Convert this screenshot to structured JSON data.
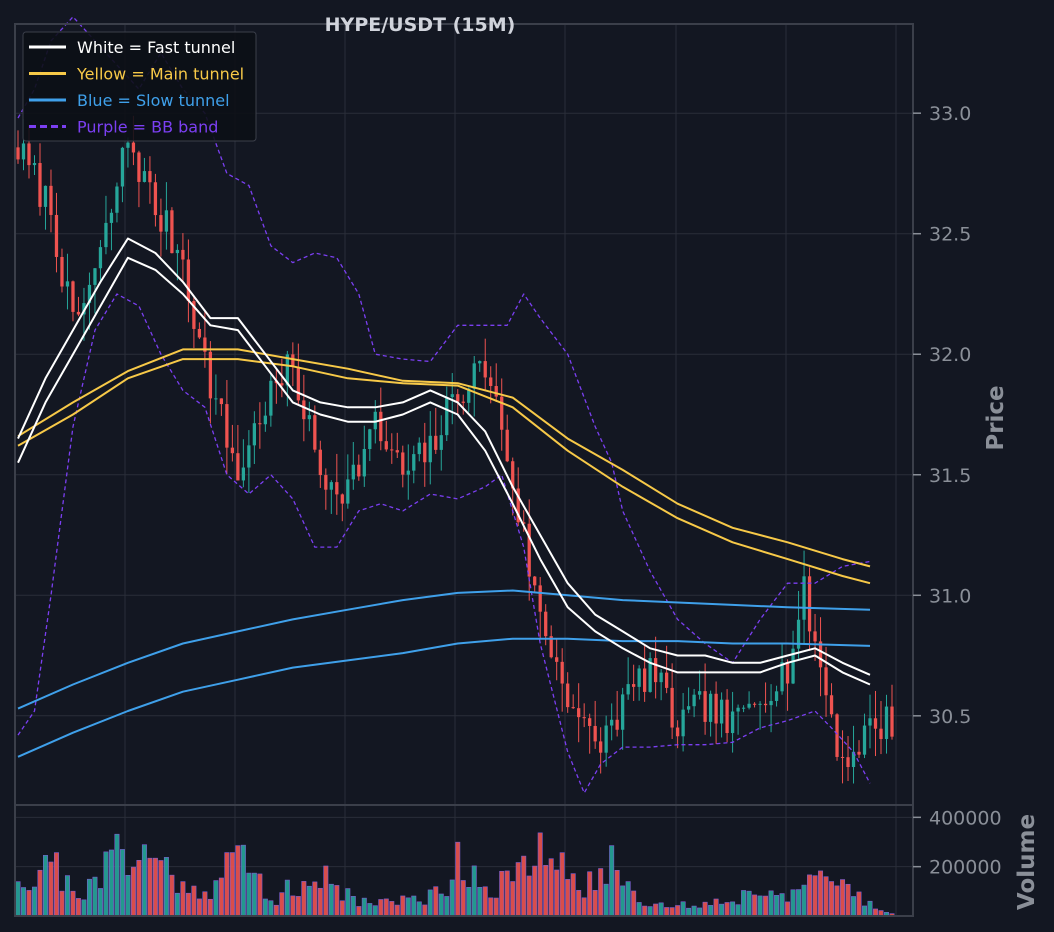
{
  "chart_data": {
    "type": "candlestick",
    "title": "HYPE/USDT (15M)",
    "price_axis": {
      "label": "Price",
      "ylim": [
        30.13,
        33.37
      ],
      "ticks": [
        30.5,
        31.0,
        31.5,
        32.0,
        32.5,
        33.0
      ],
      "tick_labels": [
        "30.5",
        "31.0",
        "31.5",
        "32.0",
        "32.5",
        "33.0"
      ]
    },
    "volume_axis": {
      "label": "Volume",
      "ylim": [
        0,
        450000
      ],
      "ticks": [
        200000,
        400000
      ],
      "tick_labels": [
        "200000",
        "400000"
      ]
    },
    "bar_count": 160,
    "grid": true,
    "legend": {
      "placement": "top-left",
      "entries": [
        {
          "label": "White = Fast tunnel",
          "color": "#ffffff",
          "dash": false
        },
        {
          "label": "Yellow = Main tunnel",
          "color": "#f7c948",
          "dash": false
        },
        {
          "label": "Blue = Slow tunnel",
          "color": "#3fa0ea",
          "dash": false
        },
        {
          "label": "Purple = BB band",
          "color": "#7b3ff2",
          "dash": true
        }
      ]
    },
    "colors": {
      "up": "#26a69a",
      "down": "#ef5350",
      "fast": "#ffffff",
      "main": "#f7c948",
      "slow": "#3fa0ea",
      "bb": "#7b3ff2",
      "background": "#131722",
      "grid": "#2a2e39",
      "axis_text": "#8a8f98"
    },
    "close_path": [
      [
        0,
        32.85
      ],
      [
        6,
        32.6
      ],
      [
        10,
        32.1
      ],
      [
        15,
        32.4
      ],
      [
        20,
        32.9
      ],
      [
        25,
        32.6
      ],
      [
        30,
        32.4
      ],
      [
        33,
        32.05
      ],
      [
        36,
        31.8
      ],
      [
        40,
        31.5
      ],
      [
        45,
        31.8
      ],
      [
        50,
        31.95
      ],
      [
        55,
        31.5
      ],
      [
        60,
        31.45
      ],
      [
        65,
        31.7
      ],
      [
        70,
        31.5
      ],
      [
        75,
        31.6
      ],
      [
        80,
        31.85
      ],
      [
        85,
        31.95
      ],
      [
        88,
        31.7
      ],
      [
        91,
        31.35
      ],
      [
        95,
        30.9
      ],
      [
        100,
        30.6
      ],
      [
        105,
        30.35
      ],
      [
        110,
        30.55
      ],
      [
        115,
        30.7
      ],
      [
        120,
        30.45
      ],
      [
        125,
        30.55
      ],
      [
        130,
        30.45
      ],
      [
        135,
        30.6
      ],
      [
        140,
        30.7
      ],
      [
        143,
        31.0
      ],
      [
        146,
        30.7
      ],
      [
        150,
        30.3
      ],
      [
        155,
        30.45
      ],
      [
        159,
        30.48
      ]
    ],
    "fast_upper": [
      [
        0,
        31.65
      ],
      [
        5,
        31.9
      ],
      [
        10,
        32.1
      ],
      [
        15,
        32.3
      ],
      [
        20,
        32.48
      ],
      [
        25,
        32.42
      ],
      [
        30,
        32.3
      ],
      [
        35,
        32.15
      ],
      [
        40,
        32.15
      ],
      [
        45,
        32.0
      ],
      [
        50,
        31.85
      ],
      [
        55,
        31.8
      ],
      [
        60,
        31.78
      ],
      [
        65,
        31.78
      ],
      [
        70,
        31.8
      ],
      [
        75,
        31.85
      ],
      [
        80,
        31.8
      ],
      [
        85,
        31.68
      ],
      [
        90,
        31.45
      ],
      [
        95,
        31.25
      ],
      [
        100,
        31.05
      ],
      [
        105,
        30.92
      ],
      [
        110,
        30.85
      ],
      [
        115,
        30.78
      ],
      [
        120,
        30.75
      ],
      [
        125,
        30.75
      ],
      [
        130,
        30.72
      ],
      [
        135,
        30.72
      ],
      [
        140,
        30.75
      ],
      [
        145,
        30.78
      ],
      [
        150,
        30.72
      ],
      [
        155,
        30.67
      ]
    ],
    "fast_lower": [
      [
        0,
        31.55
      ],
      [
        5,
        31.8
      ],
      [
        10,
        32.0
      ],
      [
        15,
        32.2
      ],
      [
        20,
        32.4
      ],
      [
        25,
        32.35
      ],
      [
        30,
        32.25
      ],
      [
        35,
        32.12
      ],
      [
        40,
        32.1
      ],
      [
        45,
        31.95
      ],
      [
        50,
        31.8
      ],
      [
        55,
        31.75
      ],
      [
        60,
        31.72
      ],
      [
        65,
        31.72
      ],
      [
        70,
        31.75
      ],
      [
        75,
        31.8
      ],
      [
        80,
        31.75
      ],
      [
        85,
        31.6
      ],
      [
        90,
        31.38
      ],
      [
        95,
        31.15
      ],
      [
        100,
        30.95
      ],
      [
        105,
        30.85
      ],
      [
        110,
        30.78
      ],
      [
        115,
        30.72
      ],
      [
        120,
        30.68
      ],
      [
        125,
        30.68
      ],
      [
        130,
        30.68
      ],
      [
        135,
        30.68
      ],
      [
        140,
        30.72
      ],
      [
        145,
        30.75
      ],
      [
        150,
        30.68
      ],
      [
        155,
        30.63
      ]
    ],
    "main_upper": [
      [
        0,
        31.66
      ],
      [
        10,
        31.8
      ],
      [
        20,
        31.93
      ],
      [
        30,
        32.02
      ],
      [
        40,
        32.02
      ],
      [
        50,
        31.98
      ],
      [
        60,
        31.94
      ],
      [
        70,
        31.89
      ],
      [
        80,
        31.88
      ],
      [
        90,
        31.82
      ],
      [
        100,
        31.65
      ],
      [
        110,
        31.52
      ],
      [
        120,
        31.38
      ],
      [
        130,
        31.28
      ],
      [
        140,
        31.22
      ],
      [
        150,
        31.15
      ],
      [
        155,
        31.12
      ]
    ],
    "main_lower": [
      [
        0,
        31.62
      ],
      [
        10,
        31.75
      ],
      [
        20,
        31.9
      ],
      [
        30,
        31.98
      ],
      [
        40,
        31.98
      ],
      [
        50,
        31.95
      ],
      [
        60,
        31.9
      ],
      [
        70,
        31.88
      ],
      [
        80,
        31.87
      ],
      [
        90,
        31.78
      ],
      [
        100,
        31.6
      ],
      [
        110,
        31.45
      ],
      [
        120,
        31.32
      ],
      [
        130,
        31.22
      ],
      [
        140,
        31.15
      ],
      [
        150,
        31.08
      ],
      [
        155,
        31.05
      ]
    ],
    "slow_upper": [
      [
        0,
        30.53
      ],
      [
        10,
        30.63
      ],
      [
        20,
        30.72
      ],
      [
        30,
        30.8
      ],
      [
        40,
        30.85
      ],
      [
        50,
        30.9
      ],
      [
        60,
        30.94
      ],
      [
        70,
        30.98
      ],
      [
        80,
        31.01
      ],
      [
        90,
        31.02
      ],
      [
        100,
        31.0
      ],
      [
        110,
        30.98
      ],
      [
        120,
        30.97
      ],
      [
        130,
        30.96
      ],
      [
        140,
        30.95
      ],
      [
        155,
        30.94
      ]
    ],
    "slow_lower": [
      [
        0,
        30.33
      ],
      [
        10,
        30.43
      ],
      [
        20,
        30.52
      ],
      [
        30,
        30.6
      ],
      [
        40,
        30.65
      ],
      [
        50,
        30.7
      ],
      [
        60,
        30.73
      ],
      [
        70,
        30.76
      ],
      [
        80,
        30.8
      ],
      [
        90,
        30.82
      ],
      [
        100,
        30.82
      ],
      [
        110,
        30.81
      ],
      [
        120,
        30.81
      ],
      [
        130,
        30.8
      ],
      [
        140,
        30.8
      ],
      [
        155,
        30.79
      ]
    ],
    "bb_upper": [
      [
        0,
        32.98
      ],
      [
        3,
        33.1
      ],
      [
        6,
        33.3
      ],
      [
        10,
        33.4
      ],
      [
        14,
        33.3
      ],
      [
        18,
        33.2
      ],
      [
        22,
        33.1
      ],
      [
        26,
        33.25
      ],
      [
        30,
        33.1
      ],
      [
        34,
        33.0
      ],
      [
        38,
        32.75
      ],
      [
        42,
        32.7
      ],
      [
        46,
        32.45
      ],
      [
        50,
        32.38
      ],
      [
        54,
        32.42
      ],
      [
        58,
        32.4
      ],
      [
        62,
        32.25
      ],
      [
        65,
        32.0
      ],
      [
        70,
        31.98
      ],
      [
        75,
        31.97
      ],
      [
        80,
        32.12
      ],
      [
        85,
        32.12
      ],
      [
        89,
        32.12
      ],
      [
        92,
        32.25
      ],
      [
        95,
        32.15
      ],
      [
        100,
        32.0
      ],
      [
        105,
        31.7
      ],
      [
        108,
        31.55
      ],
      [
        110,
        31.35
      ],
      [
        115,
        31.1
      ],
      [
        120,
        30.9
      ],
      [
        125,
        30.8
      ],
      [
        130,
        30.72
      ],
      [
        135,
        30.9
      ],
      [
        140,
        31.05
      ],
      [
        145,
        31.05
      ],
      [
        150,
        31.12
      ],
      [
        155,
        31.14
      ]
    ],
    "bb_lower": [
      [
        0,
        30.42
      ],
      [
        3,
        30.52
      ],
      [
        6,
        31.0
      ],
      [
        10,
        31.7
      ],
      [
        14,
        32.1
      ],
      [
        18,
        32.25
      ],
      [
        22,
        32.2
      ],
      [
        26,
        32.0
      ],
      [
        30,
        31.85
      ],
      [
        34,
        31.78
      ],
      [
        38,
        31.5
      ],
      [
        42,
        31.42
      ],
      [
        46,
        31.5
      ],
      [
        50,
        31.4
      ],
      [
        54,
        31.2
      ],
      [
        58,
        31.2
      ],
      [
        62,
        31.35
      ],
      [
        66,
        31.38
      ],
      [
        70,
        31.35
      ],
      [
        75,
        31.42
      ],
      [
        80,
        31.4
      ],
      [
        85,
        31.45
      ],
      [
        88,
        31.5
      ],
      [
        92,
        31.2
      ],
      [
        95,
        30.8
      ],
      [
        100,
        30.35
      ],
      [
        103,
        30.18
      ],
      [
        106,
        30.3
      ],
      [
        110,
        30.37
      ],
      [
        115,
        30.37
      ],
      [
        120,
        30.38
      ],
      [
        125,
        30.38
      ],
      [
        130,
        30.39
      ],
      [
        135,
        30.45
      ],
      [
        140,
        30.48
      ],
      [
        145,
        30.52
      ],
      [
        148,
        30.45
      ],
      [
        152,
        30.35
      ],
      [
        155,
        30.22
      ]
    ],
    "volume_peaks": [
      [
        0,
        220000
      ],
      [
        3,
        150000
      ],
      [
        5,
        355000
      ],
      [
        8,
        170000
      ],
      [
        12,
        120000
      ],
      [
        15,
        165000
      ],
      [
        19,
        415000
      ],
      [
        21,
        275000
      ],
      [
        24,
        290000
      ],
      [
        27,
        240000
      ],
      [
        30,
        145000
      ],
      [
        33,
        130000
      ],
      [
        36,
        160000
      ],
      [
        40,
        315000
      ],
      [
        43,
        210000
      ],
      [
        46,
        80000
      ],
      [
        50,
        140000
      ],
      [
        53,
        110000
      ],
      [
        56,
        210000
      ],
      [
        59,
        130000
      ],
      [
        62,
        70000
      ],
      [
        65,
        80000
      ],
      [
        70,
        70000
      ],
      [
        75,
        100000
      ],
      [
        78,
        160000
      ],
      [
        80,
        270000
      ],
      [
        83,
        220000
      ],
      [
        86,
        130000
      ],
      [
        90,
        190000
      ],
      [
        93,
        230000
      ],
      [
        96,
        320000
      ],
      [
        99,
        220000
      ],
      [
        102,
        170000
      ],
      [
        105,
        140000
      ],
      [
        108,
        290000
      ],
      [
        110,
        180000
      ],
      [
        113,
        90000
      ],
      [
        116,
        60000
      ],
      [
        120,
        50000
      ],
      [
        125,
        60000
      ],
      [
        130,
        80000
      ],
      [
        135,
        130000
      ],
      [
        140,
        120000
      ],
      [
        145,
        150000
      ],
      [
        150,
        180000
      ],
      [
        153,
        90000
      ],
      [
        156,
        40000
      ],
      [
        159,
        20000
      ]
    ]
  }
}
